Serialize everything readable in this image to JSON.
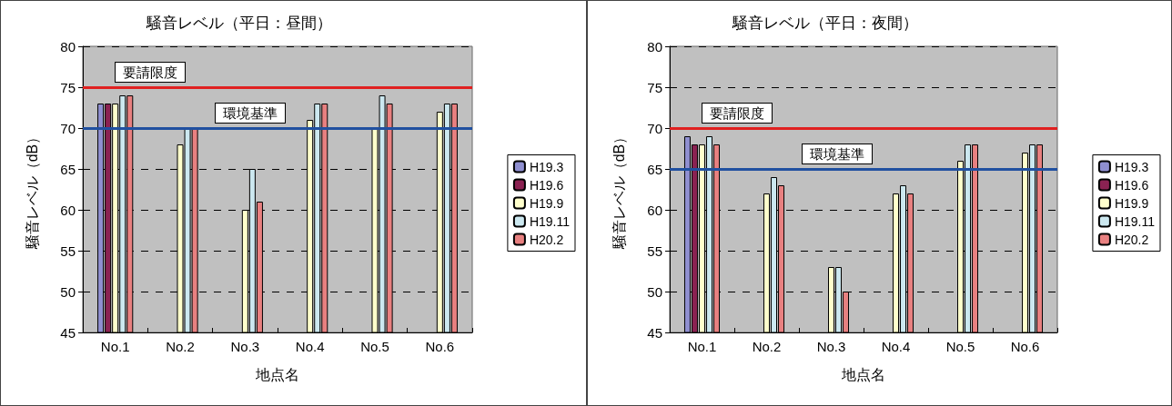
{
  "chart_data": [
    {
      "type": "bar",
      "title": "騒音レベル（平日：昼間）",
      "xlabel": "地点名",
      "ylabel": "騒音レベル（dB）",
      "categories": [
        "No.1",
        "No.2",
        "No.3",
        "No.4",
        "No.5",
        "No.6"
      ],
      "series": [
        {
          "name": "H19.3",
          "color": "#8f8fd0",
          "values": [
            73,
            null,
            null,
            null,
            null,
            null
          ]
        },
        {
          "name": "H19.6",
          "color": "#8b2252",
          "values": [
            73,
            null,
            null,
            null,
            null,
            null
          ]
        },
        {
          "name": "H19.9",
          "color": "#ffffcc",
          "values": [
            73,
            68,
            60,
            71,
            70,
            72
          ]
        },
        {
          "name": "H19.11",
          "color": "#cce8f0",
          "values": [
            74,
            70,
            65,
            73,
            74,
            73
          ]
        },
        {
          "name": "H20.2",
          "color": "#e88080",
          "values": [
            74,
            70,
            61,
            73,
            73,
            73
          ]
        }
      ],
      "ylim": [
        45,
        80
      ],
      "yticks": [
        45,
        50,
        55,
        60,
        65,
        70,
        75,
        80
      ],
      "grid": "y",
      "legend": "right",
      "ref_lines": [
        {
          "axis": "y",
          "value": 75,
          "label": "要請限度",
          "color": "#e02020"
        },
        {
          "axis": "y",
          "value": 70,
          "label": "環境基準",
          "color": "#2050a0"
        }
      ]
    },
    {
      "type": "bar",
      "title": "騒音レベル（平日：夜間）",
      "xlabel": "地点名",
      "ylabel": "騒音レベル（dB）",
      "categories": [
        "No.1",
        "No.2",
        "No.3",
        "No.4",
        "No.5",
        "No.6"
      ],
      "series": [
        {
          "name": "H19.3",
          "color": "#8f8fd0",
          "values": [
            69,
            null,
            null,
            null,
            null,
            null
          ]
        },
        {
          "name": "H19.6",
          "color": "#8b2252",
          "values": [
            68,
            null,
            null,
            null,
            null,
            null
          ]
        },
        {
          "name": "H19.9",
          "color": "#ffffcc",
          "values": [
            68,
            62,
            53,
            62,
            66,
            67
          ]
        },
        {
          "name": "H19.11",
          "color": "#cce8f0",
          "values": [
            69,
            64,
            53,
            63,
            68,
            68
          ]
        },
        {
          "name": "H20.2",
          "color": "#e88080",
          "values": [
            68,
            63,
            50,
            62,
            68,
            68
          ]
        }
      ],
      "ylim": [
        45,
        80
      ],
      "yticks": [
        45,
        50,
        55,
        60,
        65,
        70,
        75,
        80
      ],
      "grid": "y",
      "legend": "right",
      "ref_lines": [
        {
          "axis": "y",
          "value": 70,
          "label": "要請限度",
          "color": "#e02020"
        },
        {
          "axis": "y",
          "value": 65,
          "label": "環境基準",
          "color": "#2050a0"
        }
      ]
    }
  ]
}
